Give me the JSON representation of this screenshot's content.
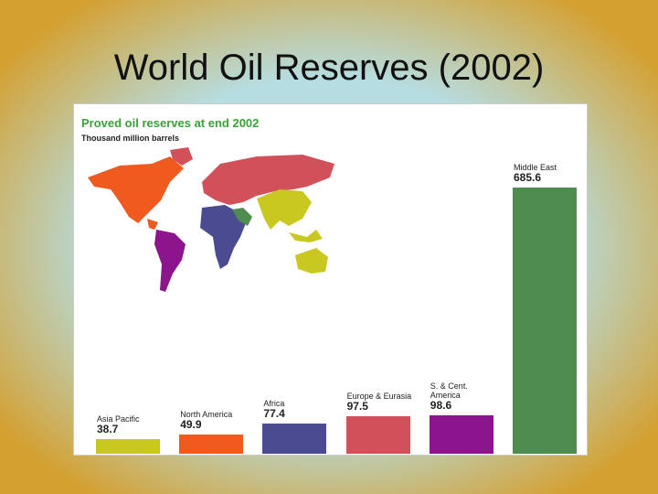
{
  "slide_title": "World Oil Reserves (2002)",
  "chart_data": {
    "type": "bar",
    "title": "Proved oil reserves at end 2002",
    "subtitle": "Thousand million barrels",
    "categories": [
      "Asia Pacific",
      "North America",
      "Africa",
      "Europe & Eurasia",
      "S. & Cent. America",
      "Middle East"
    ],
    "values": [
      38.7,
      49.9,
      77.4,
      97.5,
      98.6,
      685.6
    ],
    "colors": [
      "#c8c820",
      "#f05a1e",
      "#4b4b91",
      "#d2505a",
      "#8c148c",
      "#4f8c4f"
    ]
  }
}
